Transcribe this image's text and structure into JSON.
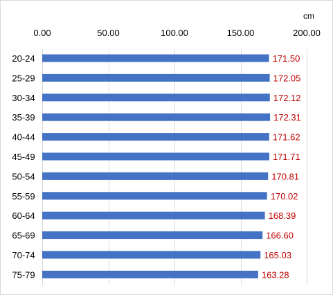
{
  "chart_data": {
    "type": "bar",
    "orientation": "horizontal",
    "unit_label": "cm",
    "categories": [
      "20-24",
      "25-29",
      "30-34",
      "35-39",
      "40-44",
      "45-49",
      "50-54",
      "55-59",
      "60-64",
      "65-69",
      "70-74",
      "75-79"
    ],
    "values": [
      171.5,
      172.05,
      172.12,
      172.31,
      171.62,
      171.71,
      170.81,
      170.02,
      168.39,
      166.6,
      165.03,
      163.28
    ],
    "data_labels": [
      "171.50",
      "172.05",
      "172.12",
      "172.31",
      "171.62",
      "171.71",
      "170.81",
      "170.02",
      "168.39",
      "166.60",
      "165.03",
      "163.28"
    ],
    "xlim": [
      0,
      200
    ],
    "x_ticks": [
      0,
      50,
      100,
      150,
      200
    ],
    "x_tick_labels": [
      "0.00",
      "50.00",
      "100.00",
      "150.00",
      "200.00"
    ],
    "x_axis_position": "top",
    "grid": true,
    "colors": {
      "bar": "#4472c4",
      "data_label": "#c00000",
      "grid": "#d9d9d9"
    }
  }
}
